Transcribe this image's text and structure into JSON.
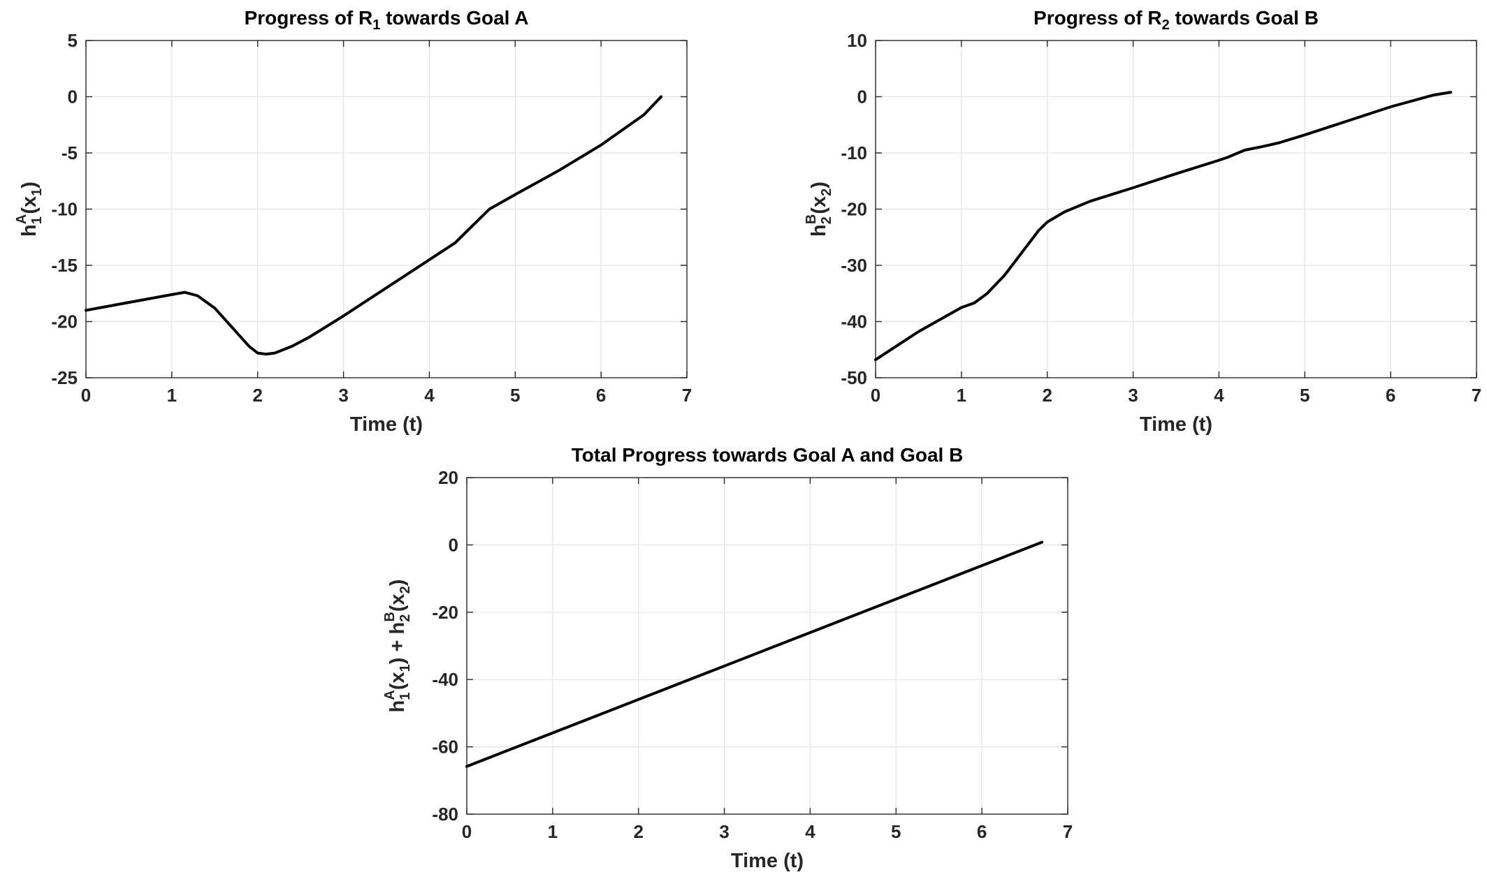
{
  "figure": {
    "line_color": "#000000",
    "grid_color": "#e3e3e3",
    "axis_color": "#262626"
  },
  "chart_data": [
    {
      "type": "line",
      "title": "Progress of R1 towards Goal A",
      "title_parts": {
        "pre": "Progress of R",
        "sub": "1",
        "post": " towards Goal A"
      },
      "xlabel": "Time (t)",
      "ylabel": "h1A(x1)",
      "ylabel_parts": {
        "base": "h",
        "sub": "1",
        "sup": "A",
        "arg_pre": "(x",
        "arg_sub": "1",
        "arg_post": ")"
      },
      "xlim": [
        0,
        7
      ],
      "ylim": [
        -25,
        5
      ],
      "xticks": [
        0,
        1,
        2,
        3,
        4,
        5,
        6,
        7
      ],
      "yticks": [
        -25,
        -20,
        -15,
        -10,
        -5,
        0,
        5
      ],
      "xtick_labels": [
        "0",
        "1",
        "2",
        "3",
        "4",
        "5",
        "6",
        "7"
      ],
      "ytick_labels": [
        "-25",
        "-20",
        "-15",
        "-10",
        "-5",
        "0",
        "5"
      ],
      "grid": true,
      "series": [
        {
          "name": "h1A",
          "x": [
            0,
            0.5,
            1.0,
            1.15,
            1.3,
            1.5,
            1.7,
            1.9,
            2.0,
            2.1,
            2.2,
            2.4,
            2.6,
            3.0,
            3.5,
            4.0,
            4.1,
            4.3,
            4.5,
            4.7,
            5.0,
            5.5,
            6.0,
            6.5,
            6.7
          ],
          "y": [
            -19.0,
            -18.3,
            -17.6,
            -17.4,
            -17.7,
            -18.8,
            -20.5,
            -22.2,
            -22.8,
            -22.9,
            -22.8,
            -22.2,
            -21.4,
            -19.5,
            -17.0,
            -14.5,
            -14.0,
            -13.0,
            -11.5,
            -10.0,
            -8.7,
            -6.6,
            -4.3,
            -1.6,
            0.0
          ]
        }
      ]
    },
    {
      "type": "line",
      "title": "Progress of R2 towards Goal B",
      "title_parts": {
        "pre": "Progress of R",
        "sub": "2",
        "post": " towards Goal B"
      },
      "xlabel": "Time (t)",
      "ylabel": "h2B(x2)",
      "ylabel_parts": {
        "base": "h",
        "sub": "2",
        "sup": "B",
        "arg_pre": "(x",
        "arg_sub": "2",
        "arg_post": ")"
      },
      "xlim": [
        0,
        7
      ],
      "ylim": [
        -50,
        10
      ],
      "xticks": [
        0,
        1,
        2,
        3,
        4,
        5,
        6,
        7
      ],
      "yticks": [
        -50,
        -40,
        -30,
        -20,
        -10,
        0,
        10
      ],
      "xtick_labels": [
        "0",
        "1",
        "2",
        "3",
        "4",
        "5",
        "6",
        "7"
      ],
      "ytick_labels": [
        "-50",
        "-40",
        "-30",
        "-20",
        "-10",
        "0",
        "10"
      ],
      "grid": true,
      "series": [
        {
          "name": "h2B",
          "x": [
            0,
            0.5,
            1.0,
            1.15,
            1.3,
            1.5,
            1.7,
            1.9,
            2.0,
            2.2,
            2.5,
            3.0,
            3.5,
            4.0,
            4.1,
            4.3,
            4.5,
            4.7,
            5.0,
            5.5,
            6.0,
            6.5,
            6.7
          ],
          "y": [
            -46.8,
            -41.8,
            -37.5,
            -36.7,
            -35.0,
            -31.8,
            -27.8,
            -23.8,
            -22.3,
            -20.5,
            -18.6,
            -16.2,
            -13.7,
            -11.3,
            -10.8,
            -9.5,
            -8.9,
            -8.2,
            -6.8,
            -4.3,
            -1.8,
            0.3,
            0.8
          ]
        }
      ]
    },
    {
      "type": "line",
      "title": "Total Progress towards Goal A and Goal B",
      "xlabel": "Time (t)",
      "ylabel": "h1A(x1) + h2B(x2)",
      "ylabel_parts": [
        {
          "base": "h",
          "sub": "1",
          "sup": "A",
          "arg_pre": "(x",
          "arg_sub": "1",
          "arg_post": ")"
        },
        {
          "joiner": " + "
        },
        {
          "base": "h",
          "sub": "2",
          "sup": "B",
          "arg_pre": "(x",
          "arg_sub": "2",
          "arg_post": ")"
        }
      ],
      "xlim": [
        0,
        7
      ],
      "ylim": [
        -80,
        20
      ],
      "xticks": [
        0,
        1,
        2,
        3,
        4,
        5,
        6,
        7
      ],
      "yticks": [
        -80,
        -60,
        -40,
        -20,
        0,
        20
      ],
      "xtick_labels": [
        "0",
        "1",
        "2",
        "3",
        "4",
        "5",
        "6",
        "7"
      ],
      "ytick_labels": [
        "-80",
        "-60",
        "-40",
        "-20",
        "0",
        "20"
      ],
      "grid": true,
      "series": [
        {
          "name": "total",
          "x": [
            0,
            6.7
          ],
          "y": [
            -65.8,
            0.8
          ]
        }
      ]
    }
  ]
}
